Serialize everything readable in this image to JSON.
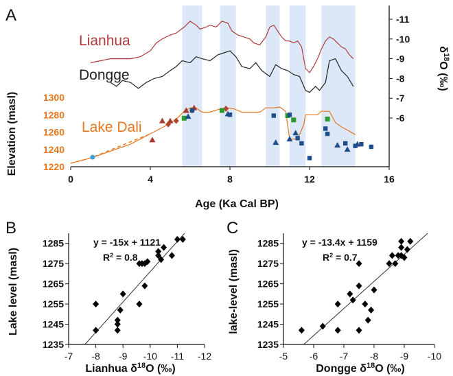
{
  "colors": {
    "lianhua": "#b03a3a",
    "dongge": "#222222",
    "dali": "#e8761e",
    "band": "#dce8f7",
    "triangle_red": "#a63a2e",
    "diamond_red": "#b5432d",
    "green": "#2e9a2e",
    "blue": "#1f4f8a",
    "dot": "#3ca0d8"
  },
  "chart_data": [
    {
      "panel": "A",
      "type": "line",
      "xlabel": "Age (Ka Cal BP)",
      "ylabel_left": "Elevation (masl)",
      "ylabel_right_prefix": "δ",
      "ylabel_right_sup": "18",
      "ylabel_right_suffix": "O (‰)",
      "xlim": [
        0,
        16
      ],
      "xticks": [
        "0",
        "4",
        "8",
        "12",
        "16"
      ],
      "ylim_left": [
        1220,
        1300
      ],
      "yticks_left": [
        "1220",
        "1240",
        "1260",
        "1280",
        "1300"
      ],
      "yticks_right": [
        "-11",
        "-10",
        "-9",
        "-8",
        "-7",
        "-6"
      ],
      "shaded_bands": [
        [
          5.6,
          6.6
        ],
        [
          7.5,
          8.3
        ],
        [
          9.8,
          10.5
        ],
        [
          11.0,
          11.8
        ],
        [
          12.6,
          14.3
        ]
      ],
      "series": [
        {
          "name": "Lianhua",
          "kind": "isotope",
          "x": [
            1.0,
            1.5,
            2.0,
            2.5,
            3.0,
            3.5,
            4.0,
            4.3,
            4.6,
            5.0,
            5.3,
            5.7,
            6.0,
            6.3,
            6.5,
            6.8,
            7.0,
            7.3,
            7.6,
            7.9,
            8.1,
            8.4,
            8.7,
            9.0,
            9.2,
            9.5,
            9.8,
            10.0,
            10.2,
            10.4,
            10.6,
            10.8,
            11.0,
            11.2,
            11.4,
            11.6,
            11.8,
            12.0,
            12.2,
            12.4,
            12.6,
            12.8,
            13.0,
            13.2,
            13.4,
            13.6,
            13.8,
            14.0,
            14.2
          ],
          "y": [
            -8.8,
            -8.9,
            -9.0,
            -9.0,
            -9.0,
            -9.1,
            -9.4,
            -9.8,
            -10.0,
            -10.2,
            -10.3,
            -10.6,
            -10.9,
            -10.7,
            -10.5,
            -10.6,
            -10.7,
            -10.6,
            -10.9,
            -10.8,
            -10.4,
            -10.2,
            -10.1,
            -10.0,
            -9.8,
            -9.7,
            -10.1,
            -10.6,
            -10.7,
            -10.4,
            -10.1,
            -9.9,
            -9.9,
            -9.8,
            -9.9,
            -9.6,
            -8.5,
            -8.3,
            -8.6,
            -9.0,
            -9.5,
            -9.9,
            -10.1,
            -10.0,
            -9.8,
            -9.6,
            -9.5,
            -9.2,
            -9.0
          ]
        },
        {
          "name": "Dongge",
          "kind": "isotope",
          "x": [
            2.0,
            2.3,
            2.6,
            3.0,
            3.4,
            3.8,
            4.2,
            4.6,
            5.0,
            5.3,
            5.6,
            6.0,
            6.3,
            6.6,
            7.0,
            7.4,
            7.7,
            8.0,
            8.3,
            8.6,
            9.0,
            9.3,
            9.6,
            10.0,
            10.3,
            10.6,
            10.9,
            11.2,
            11.5,
            11.8,
            12.0,
            12.3,
            12.5,
            12.8,
            13.0,
            13.3,
            13.6,
            13.9,
            14.2
          ],
          "y": [
            -7.8,
            -7.6,
            -7.9,
            -7.8,
            -7.5,
            -7.8,
            -8.0,
            -8.1,
            -8.4,
            -8.6,
            -8.9,
            -8.8,
            -9.1,
            -9.0,
            -8.9,
            -9.2,
            -9.3,
            -9.4,
            -9.1,
            -8.6,
            -8.5,
            -8.8,
            -8.4,
            -8.1,
            -8.7,
            -8.5,
            -8.4,
            -8.2,
            -8.1,
            -7.4,
            -7.3,
            -7.6,
            -7.4,
            -7.8,
            -8.9,
            -9.0,
            -8.4,
            -8.1,
            -7.6
          ]
        },
        {
          "name": "Lake Dali",
          "kind": "elevation",
          "x": [
            0.0,
            1.0,
            2.0,
            3.0,
            4.0,
            4.5,
            5.0,
            5.4,
            5.7,
            6.0,
            6.3,
            6.6,
            7.0,
            7.4,
            7.8,
            8.2,
            8.6,
            9.0,
            9.5,
            9.8,
            10.2,
            10.5,
            10.8,
            11.0,
            11.4,
            11.7,
            11.8,
            12.0,
            12.4,
            12.6,
            13.0,
            13.3,
            13.6,
            14.0,
            14.3
          ],
          "y": [
            1224,
            1230,
            1238,
            1246,
            1258,
            1264,
            1270,
            1277,
            1284,
            1288,
            1288,
            1283,
            1283,
            1286,
            1288,
            1287,
            1283,
            1283,
            1283,
            1288,
            1288,
            1289,
            1284,
            1252,
            1252,
            1268,
            1280,
            1280,
            1280,
            1284,
            1284,
            1271,
            1266,
            1261,
            1257
          ]
        }
      ],
      "markers": {
        "red_triangles": [
          [
            4.1,
            1251
          ],
          [
            4.6,
            1273
          ],
          [
            5.0,
            1273
          ],
          [
            5.8,
            1285
          ],
          [
            6.2,
            1288
          ]
        ],
        "red_diamonds": [
          [
            4.9,
            1269
          ],
          [
            5.3,
            1273
          ],
          [
            6.1,
            1285
          ],
          [
            7.8,
            1287
          ]
        ],
        "green_squares": [
          [
            5.7,
            1276
          ],
          [
            10.9,
            1279
          ],
          [
            11.2,
            1274
          ],
          [
            12.9,
            1275
          ],
          [
            7.6,
            1285
          ]
        ],
        "blue_triangles": [
          [
            5.9,
            1278
          ],
          [
            7.9,
            1281
          ],
          [
            10.3,
            1248
          ],
          [
            11.0,
            1252
          ],
          [
            11.3,
            1259
          ],
          [
            13.4,
            1245
          ],
          [
            13.9,
            1240
          ],
          [
            14.4,
            1246
          ]
        ],
        "blue_squares": [
          [
            6.1,
            1285
          ],
          [
            8.0,
            1280
          ],
          [
            10.2,
            1279
          ],
          [
            11.0,
            1280
          ],
          [
            11.4,
            1253
          ],
          [
            11.6,
            1247
          ],
          [
            12.0,
            1230
          ],
          [
            12.8,
            1264
          ],
          [
            12.9,
            1258
          ],
          [
            13.8,
            1247
          ],
          [
            14.3,
            1244
          ],
          [
            14.6,
            1246
          ],
          [
            15.1,
            1243
          ]
        ],
        "blue_dots": [
          [
            1.1,
            1231
          ]
        ]
      }
    },
    {
      "panel": "B",
      "type": "scatter",
      "xlabel_prefix": "Lianhua δ",
      "xlabel_sup": "18",
      "xlabel_suffix": "O (‰)",
      "ylabel": "Lake level (masl)",
      "xlim": [
        -7,
        -12
      ],
      "ylim": [
        1235,
        1290
      ],
      "xticks": [
        "-7",
        "-8",
        "-9",
        "-10",
        "-11",
        "-12"
      ],
      "yticks": [
        "1235",
        "1245",
        "1255",
        "1265",
        "1275",
        "1285"
      ],
      "equation": "y = -15x + 1121",
      "r2_prefix": "R",
      "r2_sup": "2",
      "r2_suffix": " = 0.8",
      "fit": {
        "slope": -15,
        "intercept": 1121
      },
      "x": [
        -8.0,
        -8.0,
        -8.8,
        -8.8,
        -8.8,
        -8.9,
        -9.0,
        -9.6,
        -9.6,
        -9.7,
        -9.8,
        -9.8,
        -10.3,
        -10.3,
        -10.5,
        -10.8,
        -11.0,
        -11.2,
        -9.9,
        -10.4
      ],
      "y": [
        1242,
        1255,
        1242,
        1245,
        1247,
        1252,
        1260,
        1255,
        1275,
        1275,
        1275,
        1264,
        1279,
        1281,
        1283,
        1279,
        1287,
        1287,
        1276,
        1277
      ]
    },
    {
      "panel": "C",
      "type": "scatter",
      "xlabel_prefix": "Dongge δ",
      "xlabel_sup": "18",
      "xlabel_suffix": "O (‰)",
      "ylabel": "lake-level (masl)",
      "xlim": [
        -5,
        -10
      ],
      "ylim": [
        1235,
        1290
      ],
      "xticks": [
        "-5",
        "-6",
        "-7",
        "-8",
        "-9",
        "-10"
      ],
      "yticks": [
        "1235",
        "1245",
        "1255",
        "1265",
        "1275",
        "1285"
      ],
      "equation": "y = -13.4x + 1159",
      "r2_prefix": "R",
      "r2_sup": "2",
      "r2_suffix": " = 0.7",
      "fit": {
        "slope": -13.4,
        "intercept": 1159
      },
      "x": [
        -5.6,
        -6.3,
        -6.8,
        -6.8,
        -7.2,
        -7.5,
        -7.5,
        -7.5,
        -7.7,
        -7.8,
        -7.9,
        -8.0,
        -8.5,
        -8.6,
        -8.7,
        -8.8,
        -8.9,
        -8.9,
        -9.0,
        -9.1,
        -9.2,
        -8.9,
        -7.3
      ],
      "y": [
        1242,
        1244,
        1242,
        1255,
        1260,
        1264,
        1275,
        1242,
        1255,
        1247,
        1252,
        1262,
        1275,
        1279,
        1275,
        1279,
        1283,
        1286,
        1278,
        1282,
        1286,
        1279,
        1257
      ]
    }
  ],
  "panel_labels": [
    "A",
    "B",
    "C"
  ]
}
